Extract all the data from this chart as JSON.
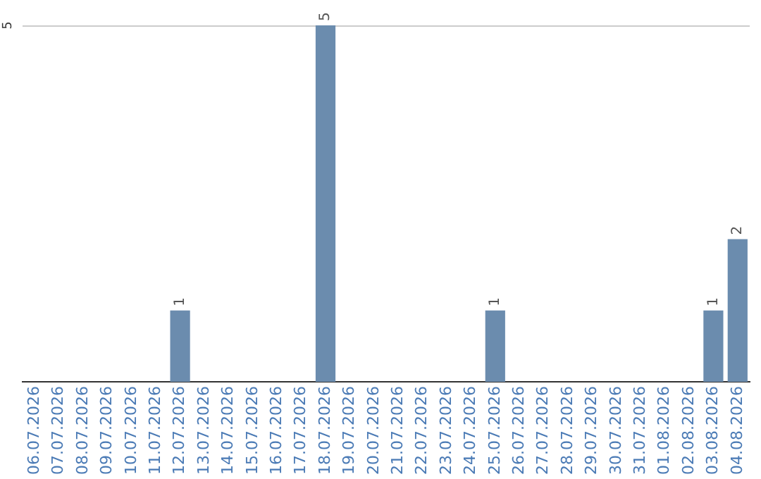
{
  "chart_data": {
    "type": "bar",
    "ylim": [
      0,
      5
    ],
    "categories": [
      "06.07.2026",
      "07.07.2026",
      "08.07.2026",
      "09.07.2026",
      "10.07.2026",
      "11.07.2026",
      "12.07.2026",
      "13.07.2026",
      "14.07.2026",
      "15.07.2026",
      "16.07.2026",
      "17.07.2026",
      "18.07.2026",
      "19.07.2026",
      "20.07.2026",
      "21.07.2026",
      "22.07.2026",
      "23.07.2026",
      "24.07.2026",
      "25.07.2026",
      "26.07.2026",
      "27.07.2026",
      "28.07.2026",
      "29.07.2026",
      "30.07.2026",
      "31.07.2026",
      "01.08.2026",
      "02.08.2026",
      "03.08.2026",
      "04.08.2026"
    ],
    "values": [
      0,
      0,
      0,
      0,
      0,
      0,
      1,
      0,
      0,
      0,
      0,
      0,
      5,
      0,
      0,
      0,
      0,
      0,
      0,
      1,
      0,
      0,
      0,
      0,
      0,
      0,
      0,
      0,
      1,
      2
    ],
    "value_labels": [
      null,
      null,
      null,
      null,
      null,
      null,
      "1",
      null,
      null,
      null,
      null,
      null,
      "5",
      null,
      null,
      null,
      null,
      null,
      null,
      "1",
      null,
      null,
      null,
      null,
      null,
      null,
      null,
      null,
      "1",
      "2"
    ],
    "color": "#6b8cae",
    "ref_lines": [
      {
        "axis": "y",
        "value": 5,
        "label": "5",
        "color": "#cccccc"
      }
    ],
    "legend": false
  }
}
